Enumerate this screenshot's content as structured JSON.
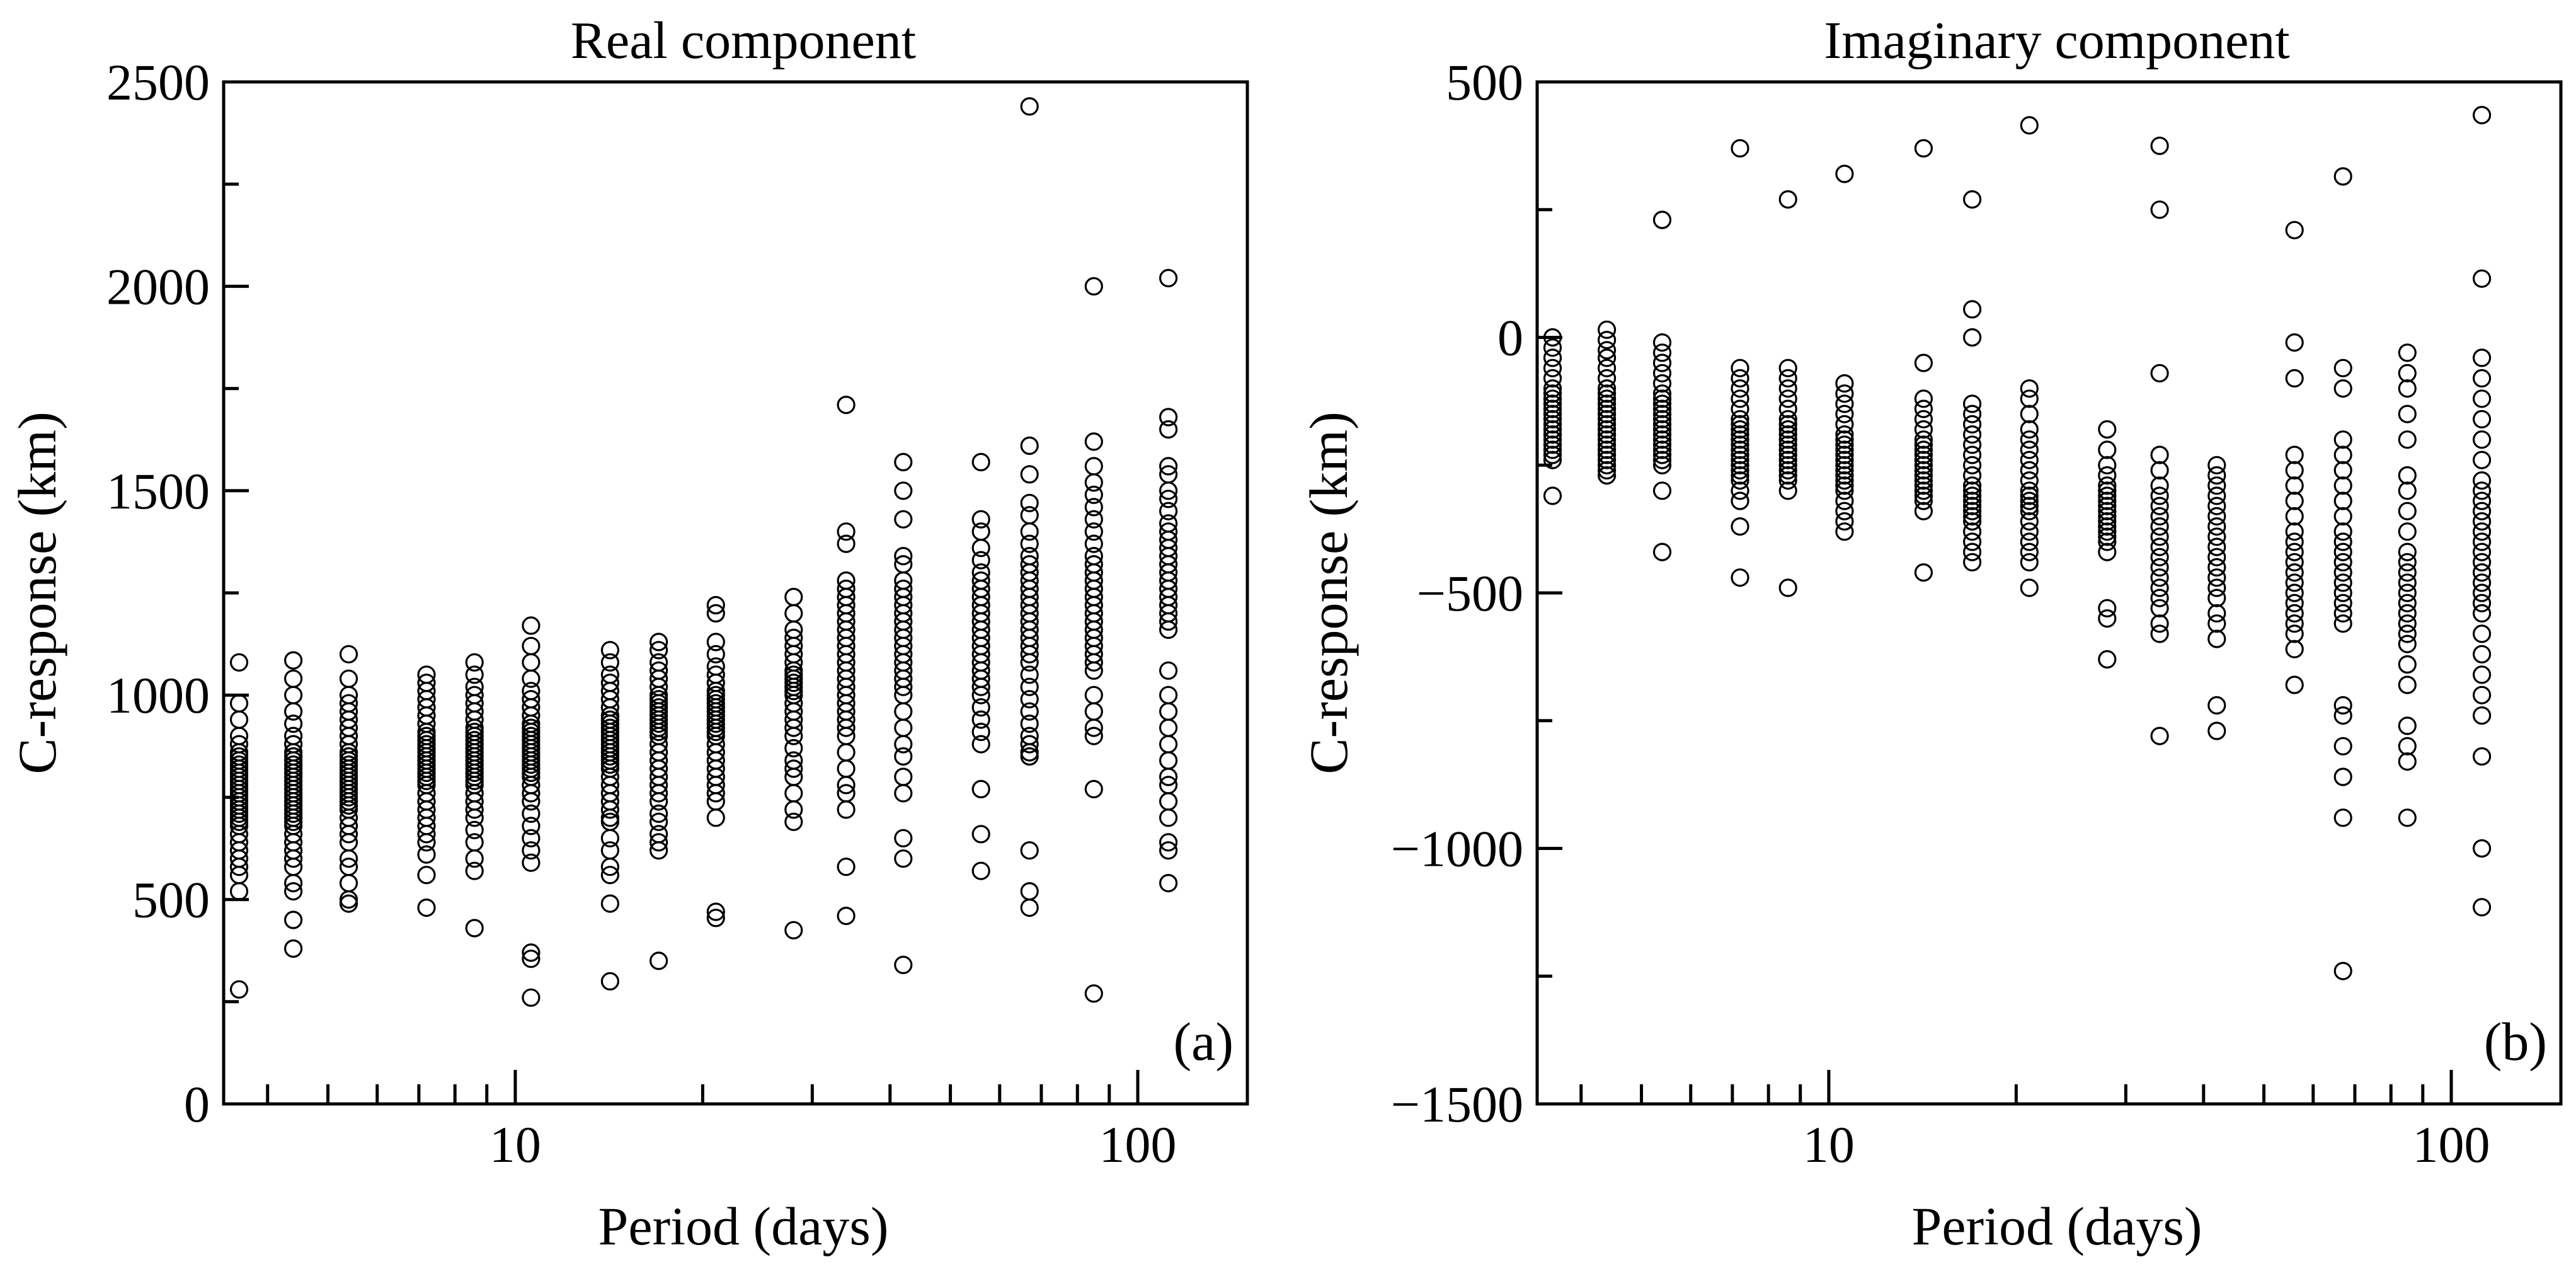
{
  "chart_data": [
    {
      "type": "scatter",
      "title": "Real component",
      "panel_label": "(a)",
      "xlabel": "Period (days)",
      "ylabel": "C-response (km)",
      "xscale": "log",
      "xlim": [
        3.4,
        150
      ],
      "ylim": [
        0,
        2500
      ],
      "yticks": [
        0,
        500,
        1000,
        1500,
        2000,
        2500
      ],
      "ytick_labels": [
        "0",
        "500",
        "1000",
        "1500",
        "2000",
        "2500"
      ],
      "xticks_major": [
        10,
        100
      ],
      "xtick_labels": [
        "10",
        "100"
      ],
      "xticks_minor": [
        4,
        5,
        6,
        7,
        8,
        9,
        20,
        30,
        40,
        50,
        60,
        70,
        80,
        90
      ],
      "series": [
        {
          "x": 3.6,
          "y": [
            1080,
            980,
            940,
            900,
            880,
            860,
            850,
            840,
            830,
            820,
            810,
            800,
            790,
            780,
            770,
            760,
            750,
            740,
            730,
            720,
            710,
            700,
            690,
            680,
            660,
            640,
            620,
            600,
            580,
            560,
            520,
            280
          ]
        },
        {
          "x": 4.4,
          "y": [
            1085,
            1040,
            1000,
            960,
            930,
            900,
            880,
            860,
            850,
            840,
            830,
            820,
            810,
            800,
            790,
            780,
            770,
            760,
            750,
            740,
            730,
            720,
            710,
            700,
            690,
            680,
            660,
            640,
            620,
            600,
            580,
            540,
            520,
            450,
            380
          ]
        },
        {
          "x": 5.4,
          "y": [
            1100,
            1040,
            1000,
            980,
            960,
            940,
            920,
            900,
            880,
            860,
            850,
            840,
            830,
            820,
            810,
            800,
            790,
            780,
            770,
            760,
            750,
            740,
            730,
            720,
            700,
            680,
            660,
            640,
            600,
            580,
            540,
            500,
            490
          ]
        },
        {
          "x": 7.2,
          "y": [
            1050,
            1030,
            1010,
            990,
            970,
            950,
            930,
            910,
            900,
            890,
            880,
            870,
            860,
            850,
            840,
            830,
            820,
            810,
            800,
            790,
            780,
            760,
            740,
            720,
            700,
            680,
            660,
            640,
            610,
            560,
            480
          ]
        },
        {
          "x": 8.6,
          "y": [
            1080,
            1050,
            1020,
            1000,
            980,
            960,
            940,
            920,
            910,
            900,
            890,
            880,
            870,
            860,
            850,
            840,
            830,
            820,
            810,
            800,
            790,
            780,
            760,
            740,
            720,
            700,
            670,
            640,
            600,
            570,
            430
          ]
        },
        {
          "x": 10.6,
          "y": [
            1170,
            1120,
            1080,
            1040,
            1010,
            990,
            970,
            950,
            930,
            920,
            910,
            900,
            890,
            880,
            870,
            860,
            850,
            840,
            830,
            820,
            810,
            800,
            780,
            760,
            740,
            710,
            680,
            650,
            620,
            590,
            370,
            355,
            260
          ]
        },
        {
          "x": 14.2,
          "y": [
            1110,
            1080,
            1050,
            1030,
            1010,
            990,
            970,
            950,
            940,
            930,
            920,
            910,
            900,
            890,
            880,
            870,
            860,
            850,
            840,
            830,
            820,
            800,
            780,
            760,
            740,
            720,
            700,
            690,
            650,
            620,
            580,
            560,
            490,
            300
          ]
        },
        {
          "x": 17,
          "y": [
            1130,
            1110,
            1080,
            1060,
            1040,
            1020,
            1000,
            990,
            980,
            970,
            960,
            950,
            940,
            930,
            920,
            910,
            900,
            880,
            860,
            840,
            820,
            800,
            780,
            760,
            740,
            710,
            690,
            660,
            640,
            620,
            350
          ]
        },
        {
          "x": 21,
          "y": [
            1220,
            1200,
            1130,
            1100,
            1070,
            1050,
            1030,
            1010,
            1000,
            990,
            980,
            970,
            960,
            950,
            940,
            930,
            920,
            910,
            900,
            880,
            860,
            840,
            820,
            800,
            780,
            760,
            740,
            700,
            470,
            455
          ]
        },
        {
          "x": 28,
          "y": [
            1240,
            1200,
            1160,
            1140,
            1120,
            1100,
            1080,
            1060,
            1050,
            1040,
            1030,
            1020,
            1010,
            1000,
            980,
            960,
            940,
            920,
            900,
            870,
            840,
            820,
            800,
            760,
            720,
            690,
            425
          ]
        },
        {
          "x": 34,
          "y": [
            1710,
            1400,
            1370,
            1280,
            1260,
            1240,
            1220,
            1200,
            1180,
            1160,
            1140,
            1120,
            1100,
            1080,
            1060,
            1040,
            1020,
            1000,
            980,
            960,
            940,
            920,
            900,
            860,
            820,
            780,
            760,
            720,
            580,
            460
          ]
        },
        {
          "x": 42,
          "y": [
            1570,
            1500,
            1430,
            1340,
            1320,
            1280,
            1260,
            1240,
            1220,
            1200,
            1180,
            1160,
            1140,
            1120,
            1100,
            1080,
            1060,
            1040,
            1020,
            1000,
            960,
            920,
            880,
            850,
            800,
            760,
            650,
            600,
            340
          ]
        },
        {
          "x": 56,
          "y": [
            1570,
            1430,
            1400,
            1360,
            1330,
            1300,
            1280,
            1260,
            1240,
            1220,
            1200,
            1180,
            1160,
            1140,
            1120,
            1100,
            1080,
            1060,
            1040,
            1020,
            1000,
            970,
            940,
            910,
            880,
            770,
            660,
            570
          ]
        },
        {
          "x": 67,
          "y": [
            2440,
            1610,
            1540,
            1470,
            1440,
            1400,
            1370,
            1340,
            1320,
            1300,
            1280,
            1260,
            1240,
            1220,
            1200,
            1180,
            1160,
            1140,
            1120,
            1100,
            1080,
            1050,
            1020,
            990,
            960,
            930,
            900,
            880,
            860,
            850,
            620,
            520,
            480
          ]
        },
        {
          "x": 85,
          "y": [
            2000,
            1620,
            1560,
            1520,
            1490,
            1460,
            1430,
            1400,
            1370,
            1340,
            1320,
            1300,
            1280,
            1260,
            1240,
            1220,
            1200,
            1180,
            1160,
            1140,
            1120,
            1100,
            1080,
            1060,
            1000,
            960,
            920,
            900,
            770,
            270
          ]
        },
        {
          "x": 112,
          "y": [
            2020,
            1680,
            1650,
            1560,
            1540,
            1500,
            1480,
            1450,
            1420,
            1400,
            1380,
            1360,
            1340,
            1320,
            1300,
            1280,
            1260,
            1240,
            1220,
            1200,
            1180,
            1160,
            1060,
            1000,
            960,
            920,
            880,
            840,
            800,
            780,
            740,
            700,
            640,
            620,
            540
          ]
        }
      ]
    },
    {
      "type": "scatter",
      "title": "Imaginary component",
      "panel_label": "(b)",
      "xlabel": "Period (days)",
      "ylabel": "C-response (km)",
      "xscale": "log",
      "xlim": [
        3.4,
        150
      ],
      "ylim": [
        -1500,
        500
      ],
      "yticks": [
        -1500,
        -1000,
        -500,
        0,
        500
      ],
      "ytick_labels": [
        "−1500",
        "−1000",
        "−500",
        "0",
        "500"
      ],
      "yticks_minor": [
        -1250,
        -750,
        -250,
        250
      ],
      "xticks_major": [
        10,
        100
      ],
      "xtick_labels": [
        "10",
        "100"
      ],
      "xticks_minor": [
        4,
        5,
        6,
        7,
        8,
        9,
        20,
        30,
        40,
        50,
        60,
        70,
        80,
        90
      ],
      "series": [
        {
          "x": 3.6,
          "y": [
            0,
            -20,
            -40,
            -60,
            -80,
            -100,
            -110,
            -120,
            -130,
            -140,
            -150,
            -160,
            -170,
            -180,
            -190,
            -200,
            -210,
            -220,
            -230,
            -240,
            -310
          ]
        },
        {
          "x": 4.4,
          "y": [
            15,
            -5,
            -25,
            -40,
            -60,
            -80,
            -100,
            -110,
            -120,
            -130,
            -140,
            -150,
            -160,
            -170,
            -180,
            -190,
            -200,
            -210,
            -220,
            -230,
            -240,
            -250,
            -260,
            -270
          ]
        },
        {
          "x": 5.4,
          "y": [
            230,
            -10,
            -30,
            -50,
            -70,
            -90,
            -110,
            -120,
            -130,
            -140,
            -150,
            -160,
            -170,
            -180,
            -190,
            -200,
            -210,
            -220,
            -230,
            -240,
            -250,
            -300,
            -420
          ]
        },
        {
          "x": 7.2,
          "y": [
            370,
            -60,
            -80,
            -100,
            -120,
            -140,
            -160,
            -170,
            -180,
            -190,
            -200,
            -210,
            -220,
            -230,
            -240,
            -250,
            -260,
            -270,
            -280,
            -300,
            -320,
            -370,
            -470
          ]
        },
        {
          "x": 8.6,
          "y": [
            270,
            -60,
            -80,
            -100,
            -120,
            -140,
            -160,
            -170,
            -180,
            -190,
            -200,
            -210,
            -220,
            -230,
            -240,
            -250,
            -260,
            -270,
            -280,
            -300,
            -490
          ]
        },
        {
          "x": 10.6,
          "y": [
            320,
            -90,
            -110,
            -130,
            -150,
            -170,
            -190,
            -200,
            -210,
            -220,
            -230,
            -240,
            -250,
            -260,
            -270,
            -280,
            -290,
            -300,
            -320,
            -340,
            -360,
            -380
          ]
        },
        {
          "x": 14.2,
          "y": [
            370,
            -50,
            -120,
            -140,
            -160,
            -180,
            -200,
            -210,
            -220,
            -230,
            -240,
            -250,
            -260,
            -270,
            -280,
            -290,
            -300,
            -310,
            -320,
            -340,
            -460
          ]
        },
        {
          "x": 17,
          "y": [
            270,
            55,
            0,
            -130,
            -150,
            -170,
            -190,
            -210,
            -230,
            -250,
            -270,
            -290,
            -300,
            -310,
            -320,
            -330,
            -340,
            -350,
            -360,
            -380,
            -400,
            -420,
            -440
          ]
        },
        {
          "x": 21,
          "y": [
            415,
            -100,
            -120,
            -150,
            -180,
            -200,
            -220,
            -240,
            -260,
            -280,
            -300,
            -310,
            -320,
            -330,
            -340,
            -360,
            -380,
            -400,
            -420,
            -440,
            -490
          ]
        },
        {
          "x": 28,
          "y": [
            -180,
            -220,
            -250,
            -270,
            -290,
            -300,
            -310,
            -320,
            -330,
            -340,
            -350,
            -360,
            -370,
            -380,
            -390,
            -400,
            -420,
            -530,
            -550,
            -630
          ]
        },
        {
          "x": 34,
          "y": [
            375,
            250,
            -70,
            -230,
            -260,
            -290,
            -310,
            -330,
            -350,
            -370,
            -390,
            -410,
            -430,
            -450,
            -470,
            -490,
            -510,
            -530,
            -560,
            -580,
            -780
          ]
        },
        {
          "x": 42,
          "y": [
            -250,
            -270,
            -290,
            -310,
            -330,
            -350,
            -370,
            -390,
            -410,
            -430,
            -450,
            -470,
            -490,
            -510,
            -540,
            -560,
            -590,
            -720,
            -770
          ]
        },
        {
          "x": 56,
          "y": [
            210,
            -10,
            -80,
            -230,
            -260,
            -290,
            -320,
            -350,
            -380,
            -400,
            -420,
            -440,
            -460,
            -480,
            -500,
            -520,
            -540,
            -560,
            -580,
            -610,
            -680
          ]
        },
        {
          "x": 67,
          "y": [
            315,
            -60,
            -100,
            -200,
            -230,
            -260,
            -290,
            -320,
            -350,
            -380,
            -400,
            -420,
            -440,
            -460,
            -480,
            -500,
            -520,
            -540,
            -560,
            -720,
            -740,
            -800,
            -860,
            -940,
            -1240
          ]
        },
        {
          "x": 85,
          "y": [
            -30,
            -70,
            -100,
            -150,
            -200,
            -270,
            -300,
            -340,
            -380,
            -420,
            -440,
            -460,
            -480,
            -500,
            -520,
            -540,
            -560,
            -580,
            -600,
            -640,
            -680,
            -760,
            -800,
            -830,
            -940
          ]
        },
        {
          "x": 112,
          "y": [
            435,
            115,
            -40,
            -80,
            -120,
            -160,
            -200,
            -240,
            -280,
            -300,
            -320,
            -340,
            -360,
            -380,
            -400,
            -420,
            -440,
            -460,
            -480,
            -500,
            -520,
            -540,
            -580,
            -620,
            -660,
            -700,
            -740,
            -820,
            -1000,
            -1115
          ]
        }
      ]
    }
  ]
}
